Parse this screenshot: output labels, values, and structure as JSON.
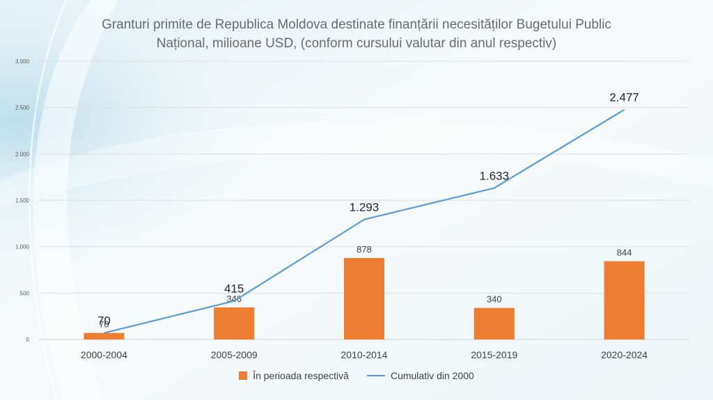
{
  "chart_data": {
    "type": "bar",
    "title": "Granturi primite de Republica Moldova destinate finanțării necesităților Bugetului Public Național, milioane USD,  (conform cursului valutar din anul respectiv)",
    "title_lines": [
      "Granturi primite de Republica Moldova destinate finanțării necesităților Bugetului Public",
      "Național, milioane USD,  (conform cursului valutar din anul respectiv)"
    ],
    "categories": [
      "2000-2004",
      "2005-2009",
      "2010-2014",
      "2015-2019",
      "2020-2024"
    ],
    "series": [
      {
        "name": "În perioada respectivă",
        "kind": "bar",
        "values": [
          70,
          346,
          878,
          340,
          844
        ],
        "labels": [
          "70",
          "346",
          "878",
          "340",
          "844"
        ],
        "color": "#ed7d31"
      },
      {
        "name": "Cumulativ din 2000",
        "kind": "line",
        "values": [
          70,
          415,
          1293,
          1633,
          2477
        ],
        "labels": [
          "70",
          "415",
          "1.293",
          "1.633",
          "2.477"
        ],
        "color": "#5b9bd5"
      }
    ],
    "ylim": [
      0,
      3000
    ],
    "yticks": [
      0,
      500,
      1000,
      1500,
      2000,
      2500,
      3000
    ],
    "ytick_labels": [
      "0",
      "500",
      "1.000",
      "1.500",
      "2.000",
      "2.500",
      "3.000"
    ],
    "grid": true,
    "legend_position": "bottom"
  }
}
